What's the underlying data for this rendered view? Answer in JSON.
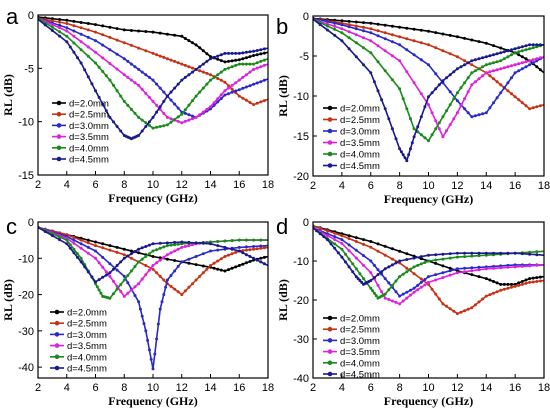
{
  "colors": {
    "d20": "#000000",
    "d25": "#c83214",
    "d30": "#2a2ac8",
    "d35": "#dd22dd",
    "d40": "#1a8a1a",
    "d45": "#1a1a8c"
  },
  "chart_data": [
    {
      "type": "line",
      "panel": "a",
      "xlabel": "Frequency (GHz)",
      "ylabel": "RL (dB)",
      "xlim": [
        2,
        18
      ],
      "ylim": [
        -15,
        0
      ],
      "xticks": [
        2,
        4,
        6,
        8,
        10,
        12,
        14,
        16,
        18
      ],
      "yticks": [
        0,
        -5,
        -10,
        -15
      ],
      "legend_position": "bottom-left",
      "series": [
        {
          "name": "d=2.0mm",
          "color": "#000000",
          "x": [
            2,
            4,
            6,
            8,
            10,
            12,
            13,
            14,
            15,
            16,
            17,
            18
          ],
          "y": [
            -0.2,
            -0.5,
            -0.9,
            -1.4,
            -1.6,
            -2.0,
            -2.8,
            -3.9,
            -4.4,
            -4.2,
            -3.8,
            -3.5
          ]
        },
        {
          "name": "d=2.5mm",
          "color": "#c83214",
          "x": [
            2,
            4,
            6,
            8,
            10,
            11,
            12,
            13,
            14,
            15,
            16,
            17,
            18
          ],
          "y": [
            -0.3,
            -0.8,
            -1.6,
            -2.6,
            -3.6,
            -4.1,
            -4.6,
            -5.1,
            -5.6,
            -6.3,
            -7.6,
            -8.4,
            -7.9
          ]
        },
        {
          "name": "d=3.0mm",
          "color": "#2a2ac8",
          "x": [
            2,
            4,
            6,
            8,
            9,
            10,
            11,
            12,
            13,
            14,
            15,
            16,
            17,
            18
          ],
          "y": [
            -0.3,
            -1.2,
            -2.4,
            -4.1,
            -5.1,
            -6.1,
            -7.6,
            -9.1,
            -9.6,
            -8.8,
            -7.5,
            -7.0,
            -6.5,
            -6.0
          ]
        },
        {
          "name": "d=3.5mm",
          "color": "#dd22dd",
          "x": [
            2,
            4,
            6,
            8,
            9,
            10,
            11,
            12,
            13,
            14,
            15,
            16,
            17,
            18
          ],
          "y": [
            -0.3,
            -1.5,
            -3.5,
            -5.6,
            -6.6,
            -8.1,
            -9.6,
            -10.1,
            -9.6,
            -8.6,
            -7.1,
            -6.1,
            -5.1,
            -4.6
          ]
        },
        {
          "name": "d=4.0mm",
          "color": "#1a8a1a",
          "x": [
            2,
            4,
            6,
            7,
            8,
            9,
            10,
            11,
            12,
            13,
            14,
            15,
            16,
            17,
            18
          ],
          "y": [
            -0.3,
            -2.0,
            -4.5,
            -6.1,
            -8.1,
            -9.6,
            -10.6,
            -10.3,
            -9.3,
            -7.6,
            -6.1,
            -5.1,
            -4.6,
            -4.6,
            -4.1
          ]
        },
        {
          "name": "d=4.5mm",
          "color": "#1a1a8c",
          "x": [
            2,
            4,
            5,
            6,
            7,
            8,
            8.5,
            9,
            10,
            11,
            12,
            13,
            14,
            15,
            16,
            17,
            18
          ],
          "y": [
            -0.4,
            -2.5,
            -4.5,
            -7.1,
            -9.6,
            -11.3,
            -11.6,
            -11.3,
            -9.6,
            -7.6,
            -6.1,
            -5.1,
            -4.1,
            -3.6,
            -3.6,
            -3.4,
            -3.1
          ]
        }
      ]
    },
    {
      "type": "line",
      "panel": "b",
      "xlabel": "Frequency (GHz)",
      "ylabel": "RL (dB)",
      "xlim": [
        2,
        18
      ],
      "ylim": [
        -20,
        0
      ],
      "xticks": [
        2,
        4,
        6,
        8,
        10,
        12,
        14,
        16,
        18
      ],
      "yticks": [
        0,
        -5,
        -10,
        -15,
        -20
      ],
      "legend_position": "bottom-left",
      "series": [
        {
          "name": "d=2.0mm",
          "color": "#000000",
          "x": [
            2,
            4,
            6,
            8,
            10,
            12,
            14,
            16,
            17,
            18
          ],
          "y": [
            -0.3,
            -0.6,
            -0.9,
            -1.4,
            -1.9,
            -2.6,
            -3.4,
            -4.6,
            -5.6,
            -7.1
          ]
        },
        {
          "name": "d=2.5mm",
          "color": "#c83214",
          "x": [
            2,
            4,
            6,
            8,
            10,
            12,
            14,
            15,
            16,
            17,
            18
          ],
          "y": [
            -0.3,
            -0.9,
            -1.6,
            -2.6,
            -3.6,
            -5.1,
            -7.1,
            -8.6,
            -10.1,
            -11.6,
            -11.1
          ]
        },
        {
          "name": "d=3.0mm",
          "color": "#2a2ac8",
          "x": [
            2,
            4,
            6,
            8,
            10,
            12,
            13,
            14,
            15,
            16,
            17,
            18
          ],
          "y": [
            -0.3,
            -1.1,
            -2.1,
            -3.6,
            -6.1,
            -10.6,
            -12.6,
            -12.1,
            -9.6,
            -7.1,
            -6.1,
            -5.1
          ]
        },
        {
          "name": "d=3.5mm",
          "color": "#dd22dd",
          "x": [
            2,
            4,
            6,
            8,
            10,
            11,
            12,
            13,
            14,
            15,
            16,
            17,
            18
          ],
          "y": [
            -0.4,
            -1.6,
            -3.1,
            -5.6,
            -11.1,
            -15.1,
            -12.1,
            -8.6,
            -7.1,
            -6.6,
            -6.1,
            -5.6,
            -5.1
          ]
        },
        {
          "name": "d=4.0mm",
          "color": "#1a8a1a",
          "x": [
            2,
            4,
            6,
            8,
            9,
            10,
            11,
            12,
            13,
            14,
            15,
            16,
            17,
            18
          ],
          "y": [
            -0.4,
            -2.1,
            -4.6,
            -9.1,
            -14.1,
            -15.6,
            -12.6,
            -9.6,
            -7.1,
            -6.1,
            -5.6,
            -4.6,
            -4.1,
            -3.6
          ]
        },
        {
          "name": "d=4.5mm",
          "color": "#1a1a8c",
          "x": [
            2,
            4,
            6,
            7,
            8,
            8.5,
            9,
            10,
            11,
            12,
            13,
            14,
            15,
            16,
            17,
            18
          ],
          "y": [
            -0.4,
            -3.1,
            -7.1,
            -11.6,
            -16.6,
            -18.1,
            -15.1,
            -10.1,
            -8.1,
            -6.6,
            -5.6,
            -5.1,
            -4.6,
            -4.1,
            -3.6,
            -3.6
          ]
        }
      ]
    },
    {
      "type": "line",
      "panel": "c",
      "xlabel": "Frequency (GHz)",
      "ylabel": "RL (dB)",
      "xlim": [
        2,
        18
      ],
      "ylim": [
        -43,
        0
      ],
      "xticks": [
        2,
        4,
        6,
        8,
        10,
        12,
        14,
        16,
        18
      ],
      "yticks": [
        0,
        -10,
        -20,
        -30,
        -40
      ],
      "legend_position": "bottom-left",
      "series": [
        {
          "name": "d=2.0mm",
          "color": "#000000",
          "x": [
            2,
            4,
            6,
            8,
            10,
            12,
            14,
            15,
            16,
            17,
            18
          ],
          "y": [
            -1.5,
            -3.5,
            -5.5,
            -7.5,
            -9.5,
            -11.0,
            -12.5,
            -13.5,
            -12.0,
            -10.5,
            -9.5
          ]
        },
        {
          "name": "d=2.5mm",
          "color": "#c83214",
          "x": [
            2,
            4,
            6,
            8,
            10,
            11,
            12,
            13,
            14,
            15,
            16,
            17,
            18
          ],
          "y": [
            -1.5,
            -3.5,
            -6.5,
            -9.0,
            -13.0,
            -17.0,
            -20.0,
            -16.0,
            -12.0,
            -9.5,
            -8.0,
            -7.5,
            -7.0
          ]
        },
        {
          "name": "d=3.0mm",
          "color": "#2a2ac8",
          "x": [
            2,
            4,
            6,
            8,
            9,
            9.5,
            10,
            10.5,
            11,
            12,
            14,
            16,
            18
          ],
          "y": [
            -1.5,
            -4.0,
            -8.0,
            -15.0,
            -22.0,
            -30.0,
            -40.5,
            -24.0,
            -16.0,
            -11.0,
            -8.0,
            -7.0,
            -6.5
          ]
        },
        {
          "name": "d=3.5mm",
          "color": "#dd22dd",
          "x": [
            2,
            4,
            6,
            7,
            8,
            9,
            10,
            11,
            12,
            13,
            14,
            16,
            18
          ],
          "y": [
            -1.5,
            -4.5,
            -10.0,
            -15.0,
            -20.5,
            -17.0,
            -12.0,
            -9.0,
            -7.0,
            -6.0,
            -5.5,
            -5.0,
            -5.0
          ]
        },
        {
          "name": "d=4.0mm",
          "color": "#1a8a1a",
          "x": [
            2,
            4,
            5,
            6,
            6.5,
            7,
            8,
            9,
            10,
            11,
            12,
            14,
            16,
            18
          ],
          "y": [
            -1.5,
            -5.0,
            -10.0,
            -17.0,
            -20.5,
            -21.0,
            -16.0,
            -11.0,
            -8.0,
            -6.5,
            -6.0,
            -5.5,
            -5.0,
            -5.0
          ]
        },
        {
          "name": "d=4.5mm",
          "color": "#1a1a8c",
          "x": [
            2,
            4,
            5,
            6,
            7,
            8,
            9,
            10,
            12,
            14,
            16,
            17,
            18
          ],
          "y": [
            -1.5,
            -6.0,
            -11.0,
            -16.5,
            -14.0,
            -10.0,
            -7.5,
            -6.0,
            -5.5,
            -6.0,
            -8.0,
            -10.0,
            -12.0
          ]
        }
      ]
    },
    {
      "type": "line",
      "panel": "d",
      "xlabel": "Frequency (GHz)",
      "ylabel": "RL (dB)",
      "xlim": [
        2,
        18
      ],
      "ylim": [
        -40,
        0
      ],
      "xticks": [
        2,
        4,
        6,
        8,
        10,
        12,
        14,
        16,
        18
      ],
      "yticks": [
        0,
        -10,
        -20,
        -30,
        -40
      ],
      "legend_position": "bottom-left",
      "series": [
        {
          "name": "d=2.0mm",
          "color": "#000000",
          "x": [
            2,
            4,
            6,
            8,
            10,
            12,
            14,
            15,
            16,
            17,
            18
          ],
          "y": [
            -1.0,
            -3.0,
            -5.0,
            -7.5,
            -10.0,
            -12.5,
            -14.5,
            -16.0,
            -16.0,
            -14.5,
            -14.0
          ]
        },
        {
          "name": "d=2.5mm",
          "color": "#c83214",
          "x": [
            2,
            4,
            6,
            8,
            10,
            11,
            12,
            13,
            14,
            15,
            16,
            17,
            18
          ],
          "y": [
            -1.0,
            -3.5,
            -6.5,
            -10.5,
            -16.0,
            -21.0,
            -23.5,
            -22.0,
            -19.0,
            -17.5,
            -16.5,
            -15.5,
            -15.0
          ]
        },
        {
          "name": "d=3.0mm",
          "color": "#2a2ac8",
          "x": [
            2,
            4,
            6,
            7,
            8,
            9,
            10,
            12,
            14,
            16,
            18
          ],
          "y": [
            -1.5,
            -4.5,
            -10.0,
            -14.5,
            -19.0,
            -17.0,
            -14.0,
            -12.0,
            -11.5,
            -11.0,
            -11.0
          ]
        },
        {
          "name": "d=3.5mm",
          "color": "#dd22dd",
          "x": [
            2,
            4,
            6,
            7,
            8,
            9,
            10,
            12,
            14,
            16,
            18
          ],
          "y": [
            -1.5,
            -5.5,
            -13.0,
            -19.5,
            -21.0,
            -18.0,
            -15.5,
            -13.0,
            -12.0,
            -11.5,
            -11.0
          ]
        },
        {
          "name": "d=4.0mm",
          "color": "#1a8a1a",
          "x": [
            2,
            4,
            5,
            6,
            6.5,
            7,
            8,
            9,
            10,
            12,
            14,
            16,
            18
          ],
          "y": [
            -1.5,
            -7.0,
            -12.0,
            -17.0,
            -19.5,
            -18.5,
            -14.0,
            -11.5,
            -10.0,
            -9.0,
            -8.5,
            -8.0,
            -7.5
          ]
        },
        {
          "name": "d=4.5mm",
          "color": "#1a1a8c",
          "x": [
            2,
            3,
            4,
            5,
            5.5,
            6,
            7,
            8,
            10,
            12,
            14,
            16,
            18
          ],
          "y": [
            -1.5,
            -4.5,
            -9.0,
            -14.0,
            -16.0,
            -15.0,
            -12.0,
            -10.0,
            -8.5,
            -8.0,
            -8.0,
            -8.0,
            -8.5
          ]
        }
      ]
    }
  ]
}
